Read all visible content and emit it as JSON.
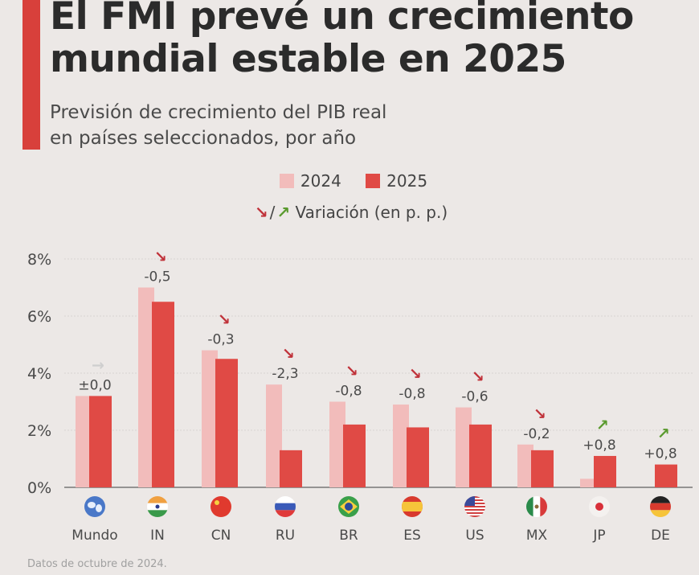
{
  "header": {
    "title": "El FMI prevé un crecimiento mundial estable en 2025",
    "subtitle_line1": "Previsión de crecimiento del PIB real",
    "subtitle_line2": "en países seleccionados, por año"
  },
  "legend": {
    "series_2024": "2024",
    "series_2025": "2025",
    "variation_label": "Variación (en p. p.)"
  },
  "colors": {
    "s2024": "#f2bcbb",
    "s2025": "#e04a45",
    "accent": "#d8403b",
    "arrow_down": "#c0323a",
    "arrow_up": "#5a9a2e",
    "arrow_neutral": "#cfcfcf"
  },
  "chart_data": {
    "type": "bar",
    "title": "Previsión de crecimiento del PIB real en países seleccionados, por año",
    "categories": [
      "Mundo",
      "IN",
      "CN",
      "RU",
      "BR",
      "ES",
      "US",
      "MX",
      "JP",
      "DE"
    ],
    "series": [
      {
        "name": "2024",
        "values": [
          3.2,
          7.0,
          4.8,
          3.6,
          3.0,
          2.9,
          2.8,
          1.5,
          0.3,
          0.0
        ]
      },
      {
        "name": "2025",
        "values": [
          3.2,
          6.5,
          4.5,
          1.3,
          2.2,
          2.1,
          2.2,
          1.3,
          1.1,
          0.8
        ]
      }
    ],
    "variation": [
      "±0,0",
      "-0,5",
      "-0,3",
      "-2,3",
      "-0,8",
      "-0,8",
      "-0,6",
      "-0,2",
      "+0,8",
      "+0,8"
    ],
    "variation_direction": [
      "flat",
      "down",
      "down",
      "down",
      "down",
      "down",
      "down",
      "down",
      "up",
      "up"
    ],
    "flags": [
      "globe-icon",
      "india-flag-icon",
      "china-flag-icon",
      "russia-flag-icon",
      "brazil-flag-icon",
      "spain-flag-icon",
      "usa-flag-icon",
      "mexico-flag-icon",
      "japan-flag-icon",
      "germany-flag-icon"
    ],
    "y_ticks": [
      "0%",
      "2%",
      "4%",
      "6%",
      "8%"
    ],
    "ylim": [
      0,
      8
    ],
    "xlabel": "",
    "ylabel": "",
    "grid": true
  },
  "footer": {
    "source_note": "Datos de octubre de 2024."
  }
}
